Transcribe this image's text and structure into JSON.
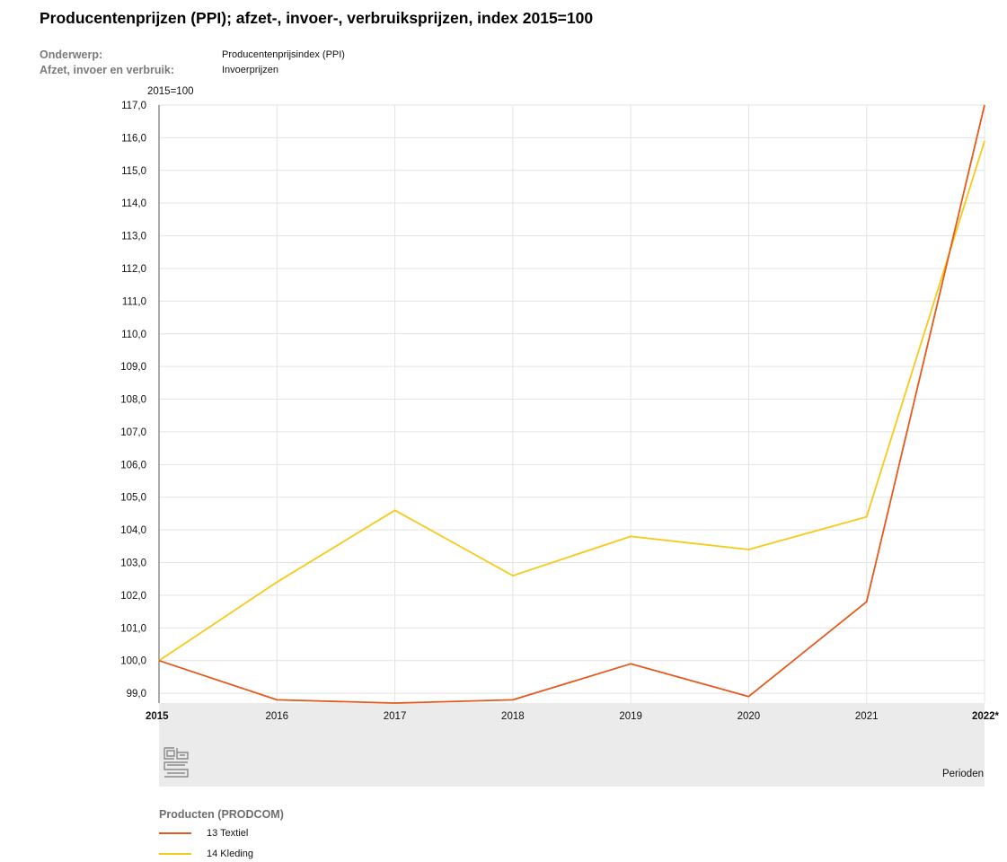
{
  "header": {
    "title": "Producentenprijzen (PPI); afzet-, invoer-, verbruiksprijzen, index 2015=100",
    "meta": [
      {
        "label": "Onderwerp:",
        "value": "Producentenprijsindex (PPI)"
      },
      {
        "label": "Afzet, invoer en verbruik:",
        "value": "Invoerprijzen"
      }
    ]
  },
  "chart_data": {
    "type": "line",
    "ylabel": "2015=100",
    "xlabel": "Perioden",
    "categories": [
      "2015",
      "2016",
      "2017",
      "2018",
      "2019",
      "2020",
      "2021",
      "2022*"
    ],
    "y_ticks": [
      "99,0",
      "100,0",
      "101,0",
      "102,0",
      "103,0",
      "104,0",
      "105,0",
      "106,0",
      "107,0",
      "108,0",
      "109,0",
      "110,0",
      "111,0",
      "112,0",
      "113,0",
      "114,0",
      "115,0",
      "116,0",
      "117,0"
    ],
    "ylim": [
      98.7,
      117.0
    ],
    "grid": true,
    "legend_title": "Producten (PRODCOM)",
    "legend_position": "bottom-left",
    "series": [
      {
        "name": "13 Textiel",
        "color": "#e35a1a",
        "values": [
          100.0,
          98.8,
          98.7,
          98.8,
          99.9,
          98.9,
          101.8,
          117.0
        ]
      },
      {
        "name": "14 Kleding",
        "color": "#f7c919",
        "values": [
          100.0,
          102.4,
          104.6,
          102.6,
          103.8,
          103.4,
          104.4,
          115.9
        ]
      }
    ]
  },
  "logo": {
    "icon": "cbs-logo-icon"
  }
}
